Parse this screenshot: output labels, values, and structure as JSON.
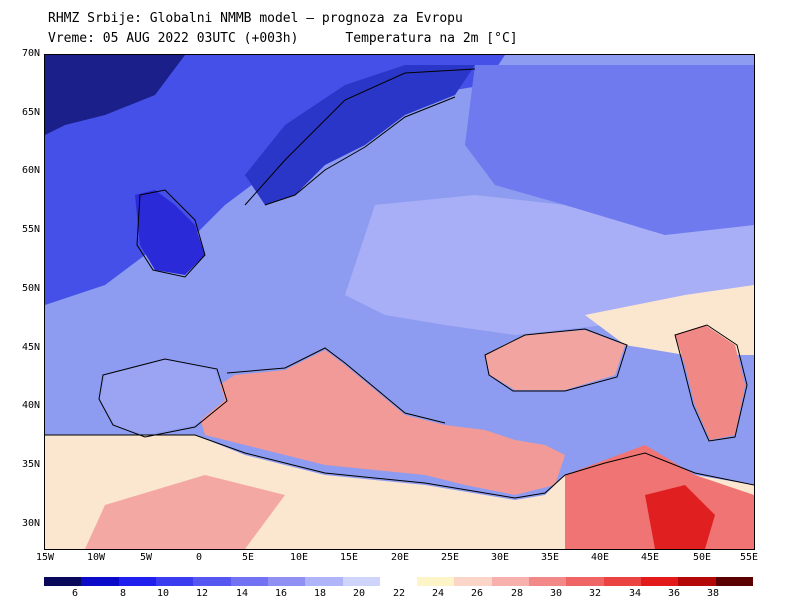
{
  "header": {
    "title": "RHMZ Srbije: Globalni NMMB model — prognoza za Evropu",
    "subtitle": "Vreme: 05 AUG 2022 03UTC (+003h)      Temperatura na 2m [°C]"
  },
  "map": {
    "lat_labels": [
      "70N",
      "65N",
      "60N",
      "55N",
      "50N",
      "45N",
      "40N",
      "35N",
      "30N"
    ],
    "lon_labels": [
      "15W",
      "10W",
      "5W",
      "0",
      "5E",
      "10E",
      "15E",
      "20E",
      "25E",
      "30E",
      "35E",
      "40E",
      "45E",
      "50E",
      "55E"
    ]
  },
  "colorbar": {
    "colors": [
      "#08085a",
      "#0a0ac8",
      "#1f1fee",
      "#3b3bf0",
      "#5656f0",
      "#7272f2",
      "#9090f4",
      "#b0b4f8",
      "#cfd4fa",
      "#ffffff",
      "#fdf4c8",
      "#fbd6c8",
      "#f7b0ac",
      "#f38888",
      "#ef6464",
      "#eb4242",
      "#e31a1a",
      "#b40808",
      "#5a0000"
    ],
    "labels": [
      "6",
      "8",
      "10",
      "12",
      "14",
      "16",
      "18",
      "20",
      "22",
      "24",
      "26",
      "28",
      "30",
      "32",
      "34",
      "36",
      "38"
    ]
  },
  "legend_colors": {
    "cold_sea_north": "#3a46e6",
    "land_mild": "#9aa4f2",
    "mediterranean": "#f29a98",
    "hot_desert": "#e8505a",
    "warm_land": "#fbe6d0"
  }
}
